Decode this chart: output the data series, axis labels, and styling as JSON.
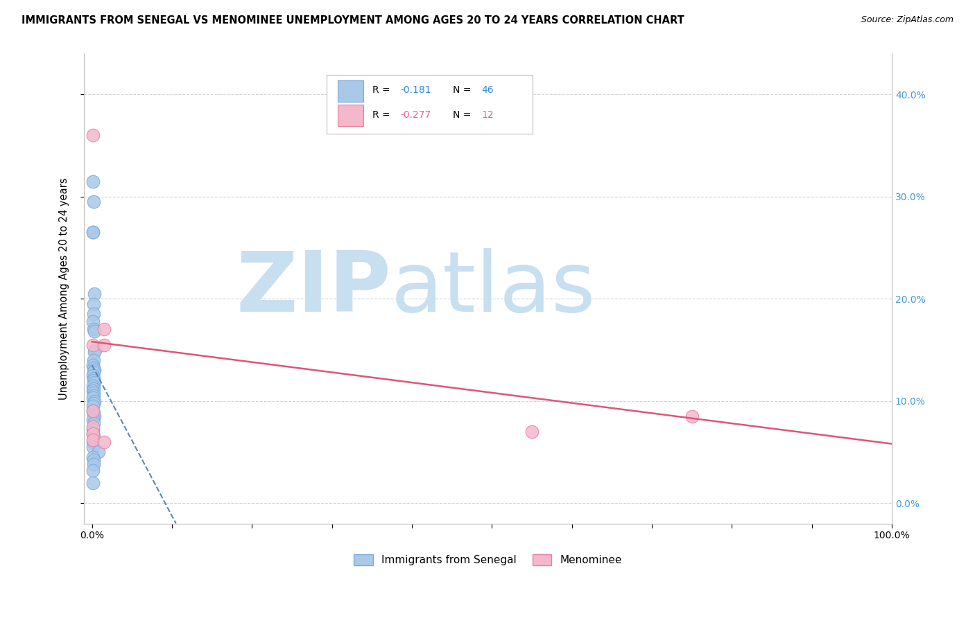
{
  "title": "IMMIGRANTS FROM SENEGAL VS MENOMINEE UNEMPLOYMENT AMONG AGES 20 TO 24 YEARS CORRELATION CHART",
  "source": "Source: ZipAtlas.com",
  "ylabel": "Unemployment Among Ages 20 to 24 years",
  "xlim": [
    -0.01,
    1.0
  ],
  "ylim": [
    -0.02,
    0.44
  ],
  "yticks": [
    0.0,
    0.1,
    0.2,
    0.3,
    0.4
  ],
  "ytick_labels_left": [
    "",
    "",
    "",
    "",
    ""
  ],
  "ytick_labels_right": [
    "0.0%",
    "10.0%",
    "20.0%",
    "30.0%",
    "40.0%"
  ],
  "xticks": [
    0.0,
    0.1,
    0.2,
    0.3,
    0.4,
    0.5,
    0.6,
    0.7,
    0.8,
    0.9,
    1.0
  ],
  "xtick_labels": [
    "0.0%",
    "",
    "",
    "",
    "",
    "",
    "",
    "",
    "",
    "",
    "100.0%"
  ],
  "blue_color": "#aac8e8",
  "blue_edge_color": "#7aabdd",
  "pink_color": "#f4b8cc",
  "pink_edge_color": "#e8809e",
  "blue_line_color": "#5588bb",
  "pink_line_color": "#dd5577",
  "grid_color": "#d0d0d0",
  "background_color": "#ffffff",
  "watermark_zip_color": "#c8dff0",
  "watermark_atlas_color": "#c8dff0",
  "legend_label_blue": "Immigrants from Senegal",
  "legend_label_pink": "Menominee",
  "blue_scatter_x": [
    0.001,
    0.002,
    0.001,
    0.001,
    0.003,
    0.002,
    0.002,
    0.001,
    0.002,
    0.003,
    0.004,
    0.003,
    0.002,
    0.001,
    0.002,
    0.003,
    0.002,
    0.001,
    0.002,
    0.002,
    0.003,
    0.001,
    0.002,
    0.001,
    0.002,
    0.002,
    0.001,
    0.003,
    0.002,
    0.001,
    0.001,
    0.002,
    0.003,
    0.001,
    0.002,
    0.001,
    0.001,
    0.002,
    0.001,
    0.001,
    0.008,
    0.001,
    0.002,
    0.002,
    0.001,
    0.001
  ],
  "blue_scatter_y": [
    0.315,
    0.295,
    0.265,
    0.265,
    0.205,
    0.195,
    0.185,
    0.178,
    0.17,
    0.168,
    0.15,
    0.148,
    0.14,
    0.135,
    0.132,
    0.13,
    0.128,
    0.125,
    0.122,
    0.12,
    0.118,
    0.115,
    0.112,
    0.11,
    0.108,
    0.105,
    0.103,
    0.1,
    0.098,
    0.095,
    0.09,
    0.088,
    0.085,
    0.082,
    0.078,
    0.072,
    0.068,
    0.065,
    0.06,
    0.055,
    0.05,
    0.045,
    0.042,
    0.038,
    0.032,
    0.02
  ],
  "pink_scatter_x": [
    0.001,
    0.001,
    0.015,
    0.015,
    0.55,
    0.75,
    0.001,
    0.001,
    0.001,
    0.001,
    0.015
  ],
  "pink_scatter_y": [
    0.36,
    0.155,
    0.155,
    0.17,
    0.07,
    0.085,
    0.09,
    0.075,
    0.068,
    0.062,
    0.06
  ],
  "blue_line_x0": 0.0,
  "blue_line_y0": 0.135,
  "blue_line_x1": 0.105,
  "blue_line_y1": -0.02,
  "pink_line_x0": 0.0,
  "pink_line_y0": 0.158,
  "pink_line_x1": 1.0,
  "pink_line_y1": 0.058
}
